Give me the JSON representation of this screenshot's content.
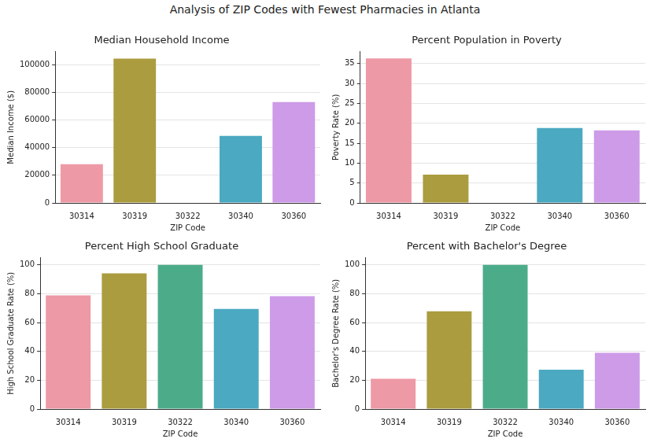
{
  "title": "Analysis of ZIP Codes with Fewest Pharmacies in Atlanta",
  "chart_data": [
    {
      "type": "bar",
      "title": "Median Household Income",
      "x_label": "ZIP Code",
      "y_label": "Median Income ($)",
      "categories": [
        "30314",
        "30319",
        "30322",
        "30340",
        "30360"
      ],
      "values": [
        28000,
        104500,
        null,
        48500,
        73000
      ],
      "colors": [
        "#ee99a6",
        "#ab9c3f",
        "#4cac8a",
        "#4ba9c1",
        "#cd9be7"
      ],
      "ylim": [
        0,
        109500
      ],
      "yticks": [
        0,
        20000,
        40000,
        60000,
        80000,
        100000
      ],
      "grid": true
    },
    {
      "type": "bar",
      "title": "Percent Population in Poverty",
      "x_label": "ZIP Code",
      "y_label": "Poverty Rate (%)",
      "categories": [
        "30314",
        "30319",
        "30322",
        "30340",
        "30360"
      ],
      "values": [
        36.3,
        7.1,
        null,
        18.8,
        18.2
      ],
      "colors": [
        "#ee99a6",
        "#ab9c3f",
        "#4cac8a",
        "#4ba9c1",
        "#cd9be7"
      ],
      "ylim": [
        0,
        38
      ],
      "yticks": [
        0,
        5,
        10,
        15,
        20,
        25,
        30,
        35
      ],
      "grid": true
    },
    {
      "type": "bar",
      "title": "Percent High School Graduate",
      "x_label": "ZIP Code",
      "y_label": "High School Graduate Rate (%)",
      "categories": [
        "30314",
        "30319",
        "30322",
        "30340",
        "30360"
      ],
      "values": [
        78.8,
        94.2,
        100,
        69.5,
        78.3
      ],
      "colors": [
        "#ee99a6",
        "#ab9c3f",
        "#4cac8a",
        "#4ba9c1",
        "#cd9be7"
      ],
      "ylim": [
        0,
        105
      ],
      "yticks": [
        0,
        20,
        40,
        60,
        80,
        100
      ],
      "grid": true
    },
    {
      "type": "bar",
      "title": "Percent with Bachelor's Degree",
      "x_label": "ZIP Code",
      "y_label": "Bachelor's Degree Rate (%)",
      "categories": [
        "30314",
        "30319",
        "30322",
        "30340",
        "30360"
      ],
      "values": [
        21,
        67.8,
        100,
        27.3,
        39
      ],
      "colors": [
        "#ee99a6",
        "#ab9c3f",
        "#4cac8a",
        "#4ba9c1",
        "#cd9be7"
      ],
      "ylim": [
        0,
        105
      ],
      "yticks": [
        0,
        20,
        40,
        60,
        80,
        100
      ],
      "grid": true
    }
  ]
}
